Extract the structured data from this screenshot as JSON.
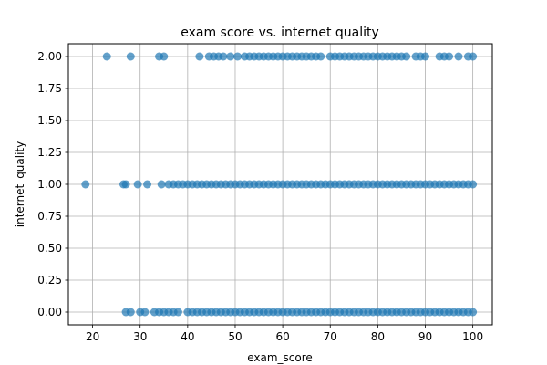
{
  "chart_data": {
    "type": "scatter",
    "title": "exam score vs. internet quality",
    "xlabel": "exam_score",
    "ylabel": "internet_quality",
    "xlim": [
      14.9,
      104.1
    ],
    "ylim": [
      -0.1,
      2.1
    ],
    "xticks": [
      20,
      30,
      40,
      50,
      60,
      70,
      80,
      90,
      100
    ],
    "xtick_labels": [
      "20",
      "30",
      "40",
      "50",
      "60",
      "70",
      "80",
      "90",
      "100"
    ],
    "yticks": [
      0.0,
      0.25,
      0.5,
      0.75,
      1.0,
      1.25,
      1.5,
      1.75,
      2.0
    ],
    "ytick_labels": [
      "0.00",
      "0.25",
      "0.50",
      "0.75",
      "1.00",
      "1.25",
      "1.50",
      "1.75",
      "2.00"
    ],
    "grid": true,
    "marker_color": "#1f77b4",
    "marker_alpha": 0.7,
    "series": [
      {
        "points": [
          [
            27,
            0
          ],
          [
            28,
            0
          ],
          [
            30,
            0
          ],
          [
            31,
            0
          ],
          [
            33,
            0
          ],
          [
            34,
            0
          ],
          [
            35,
            0
          ],
          [
            36,
            0
          ],
          [
            37,
            0
          ],
          [
            38,
            0
          ],
          [
            40,
            0
          ],
          [
            41,
            0
          ],
          [
            42,
            0
          ],
          [
            43,
            0
          ],
          [
            44,
            0
          ],
          [
            45,
            0
          ],
          [
            46,
            0
          ],
          [
            47,
            0
          ],
          [
            48,
            0
          ],
          [
            49,
            0
          ],
          [
            50,
            0
          ],
          [
            51,
            0
          ],
          [
            52,
            0
          ],
          [
            53,
            0
          ],
          [
            54,
            0
          ],
          [
            55,
            0
          ],
          [
            56,
            0
          ],
          [
            57,
            0
          ],
          [
            58,
            0
          ],
          [
            59,
            0
          ],
          [
            60,
            0
          ],
          [
            61,
            0
          ],
          [
            62,
            0
          ],
          [
            63,
            0
          ],
          [
            64,
            0
          ],
          [
            65,
            0
          ],
          [
            66,
            0
          ],
          [
            67,
            0
          ],
          [
            68,
            0
          ],
          [
            69,
            0
          ],
          [
            70,
            0
          ],
          [
            71,
            0
          ],
          [
            72,
            0
          ],
          [
            73,
            0
          ],
          [
            74,
            0
          ],
          [
            75,
            0
          ],
          [
            76,
            0
          ],
          [
            77,
            0
          ],
          [
            78,
            0
          ],
          [
            79,
            0
          ],
          [
            80,
            0
          ],
          [
            81,
            0
          ],
          [
            82,
            0
          ],
          [
            83,
            0
          ],
          [
            84,
            0
          ],
          [
            85,
            0
          ],
          [
            86,
            0
          ],
          [
            87,
            0
          ],
          [
            88,
            0
          ],
          [
            89,
            0
          ],
          [
            90,
            0
          ],
          [
            91,
            0
          ],
          [
            92,
            0
          ],
          [
            93,
            0
          ],
          [
            94,
            0
          ],
          [
            95,
            0
          ],
          [
            96,
            0
          ],
          [
            97,
            0
          ],
          [
            98,
            0
          ],
          [
            99,
            0
          ],
          [
            100,
            0
          ],
          [
            18.5,
            1
          ],
          [
            26.5,
            1
          ],
          [
            27,
            1
          ],
          [
            29.5,
            1
          ],
          [
            31.5,
            1
          ],
          [
            34.5,
            1
          ],
          [
            36,
            1
          ],
          [
            37,
            1
          ],
          [
            38,
            1
          ],
          [
            39,
            1
          ],
          [
            40,
            1
          ],
          [
            41,
            1
          ],
          [
            42,
            1
          ],
          [
            43,
            1
          ],
          [
            44,
            1
          ],
          [
            45,
            1
          ],
          [
            46,
            1
          ],
          [
            47,
            1
          ],
          [
            48,
            1
          ],
          [
            49,
            1
          ],
          [
            50,
            1
          ],
          [
            51,
            1
          ],
          [
            52,
            1
          ],
          [
            53,
            1
          ],
          [
            54,
            1
          ],
          [
            55,
            1
          ],
          [
            56,
            1
          ],
          [
            57,
            1
          ],
          [
            58,
            1
          ],
          [
            59,
            1
          ],
          [
            60,
            1
          ],
          [
            61,
            1
          ],
          [
            62,
            1
          ],
          [
            63,
            1
          ],
          [
            64,
            1
          ],
          [
            65,
            1
          ],
          [
            66,
            1
          ],
          [
            67,
            1
          ],
          [
            68,
            1
          ],
          [
            69,
            1
          ],
          [
            70,
            1
          ],
          [
            71,
            1
          ],
          [
            72,
            1
          ],
          [
            73,
            1
          ],
          [
            74,
            1
          ],
          [
            75,
            1
          ],
          [
            76,
            1
          ],
          [
            77,
            1
          ],
          [
            78,
            1
          ],
          [
            79,
            1
          ],
          [
            80,
            1
          ],
          [
            81,
            1
          ],
          [
            82,
            1
          ],
          [
            83,
            1
          ],
          [
            84,
            1
          ],
          [
            85,
            1
          ],
          [
            86,
            1
          ],
          [
            87,
            1
          ],
          [
            88,
            1
          ],
          [
            89,
            1
          ],
          [
            90,
            1
          ],
          [
            91,
            1
          ],
          [
            92,
            1
          ],
          [
            93,
            1
          ],
          [
            94,
            1
          ],
          [
            95,
            1
          ],
          [
            96,
            1
          ],
          [
            97,
            1
          ],
          [
            98,
            1
          ],
          [
            99,
            1
          ],
          [
            100,
            1
          ],
          [
            23,
            2
          ],
          [
            28,
            2
          ],
          [
            34,
            2
          ],
          [
            35,
            2
          ],
          [
            42.5,
            2
          ],
          [
            44.5,
            2
          ],
          [
            45.5,
            2
          ],
          [
            46.5,
            2
          ],
          [
            47.5,
            2
          ],
          [
            49,
            2
          ],
          [
            50.5,
            2
          ],
          [
            52,
            2
          ],
          [
            53,
            2
          ],
          [
            54,
            2
          ],
          [
            55,
            2
          ],
          [
            56,
            2
          ],
          [
            57,
            2
          ],
          [
            58,
            2
          ],
          [
            59,
            2
          ],
          [
            60,
            2
          ],
          [
            61,
            2
          ],
          [
            62,
            2
          ],
          [
            63,
            2
          ],
          [
            64,
            2
          ],
          [
            65,
            2
          ],
          [
            66,
            2
          ],
          [
            67,
            2
          ],
          [
            68,
            2
          ],
          [
            70,
            2
          ],
          [
            71,
            2
          ],
          [
            72,
            2
          ],
          [
            73,
            2
          ],
          [
            74,
            2
          ],
          [
            75,
            2
          ],
          [
            76,
            2
          ],
          [
            77,
            2
          ],
          [
            78,
            2
          ],
          [
            79,
            2
          ],
          [
            80,
            2
          ],
          [
            81,
            2
          ],
          [
            82,
            2
          ],
          [
            83,
            2
          ],
          [
            84,
            2
          ],
          [
            85,
            2
          ],
          [
            86,
            2
          ],
          [
            88,
            2
          ],
          [
            89,
            2
          ],
          [
            90,
            2
          ],
          [
            93,
            2
          ],
          [
            94,
            2
          ],
          [
            95,
            2
          ],
          [
            97,
            2
          ],
          [
            99,
            2
          ],
          [
            100,
            2
          ]
        ]
      }
    ]
  }
}
